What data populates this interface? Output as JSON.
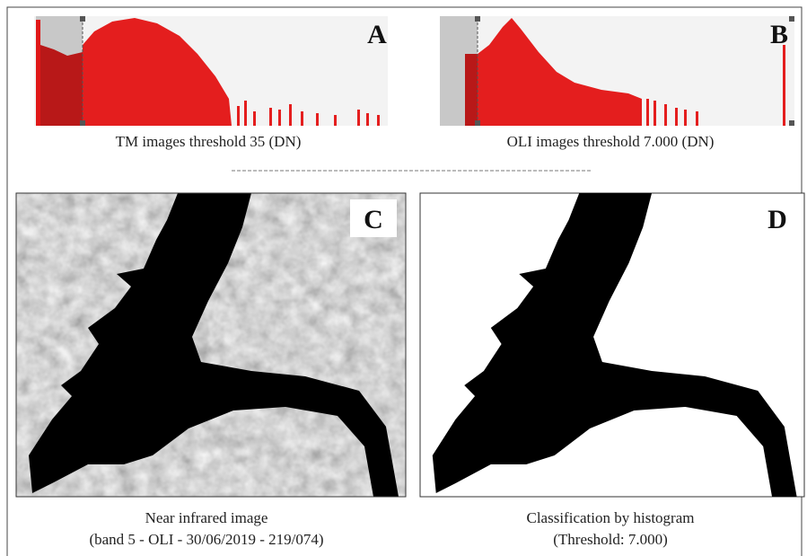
{
  "panels": [
    {
      "label": "A",
      "caption": "TM images threshold 35 (DN)"
    },
    {
      "label": "B",
      "caption": "OLI images threshold 7.000 (DN)"
    },
    {
      "label": "C",
      "caption_lines": [
        "Near infrared image",
        "(band 5 - OLI - 30/06/2019 - 219/074)"
      ]
    },
    {
      "label": "D",
      "caption_lines": [
        "Classification by histogram",
        "(Threshold: 7.000)"
      ]
    }
  ]
}
